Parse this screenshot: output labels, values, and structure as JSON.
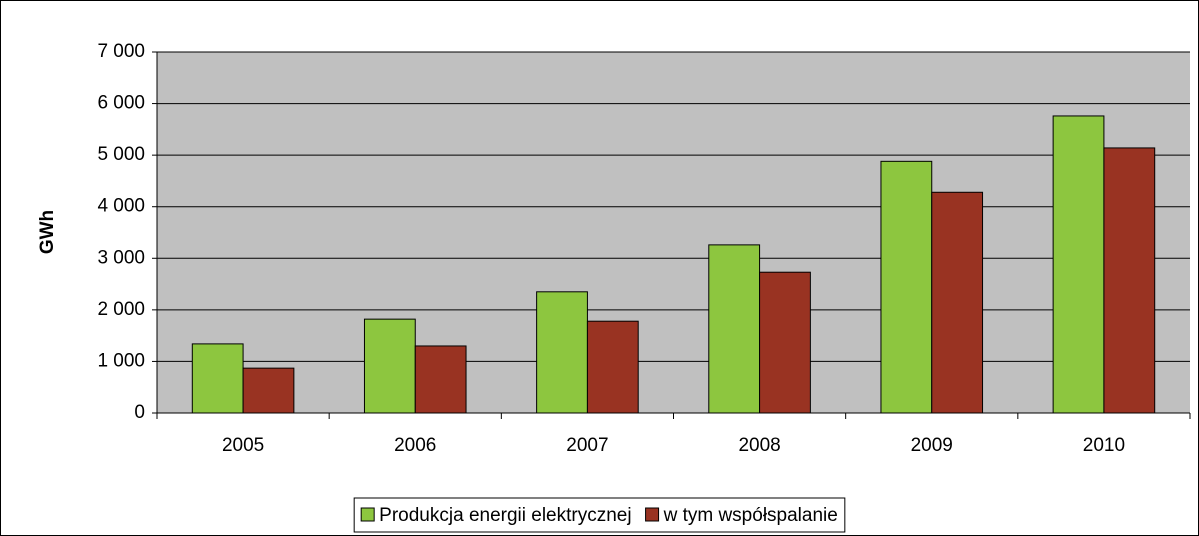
{
  "chart_data": {
    "type": "bar",
    "y_label": "GWh",
    "categories": [
      "2005",
      "2006",
      "2007",
      "2008",
      "2009",
      "2010"
    ],
    "series": [
      {
        "name": "Produkcja energii elektrycznej",
        "color": "#8dc63f",
        "values": [
          1340,
          1820,
          2350,
          3260,
          4880,
          5760
        ]
      },
      {
        "name": "w tym współspalanie",
        "color": "#993322",
        "values": [
          870,
          1300,
          1780,
          2730,
          4280,
          5140
        ]
      }
    ],
    "ylim": [
      0,
      7000
    ],
    "yticks": [
      0,
      {
        "value": 1000,
        "label": "1 000"
      },
      {
        "value": 2000,
        "label": "2 000"
      },
      {
        "value": 3000,
        "label": "3 000"
      },
      {
        "value": 4000,
        "label": "4 000"
      },
      {
        "value": 5000,
        "label": "5 000"
      },
      {
        "value": 6000,
        "label": "6 000"
      },
      {
        "value": 7000,
        "label": "7 000"
      }
    ],
    "grid": true,
    "legend": "bottom"
  }
}
